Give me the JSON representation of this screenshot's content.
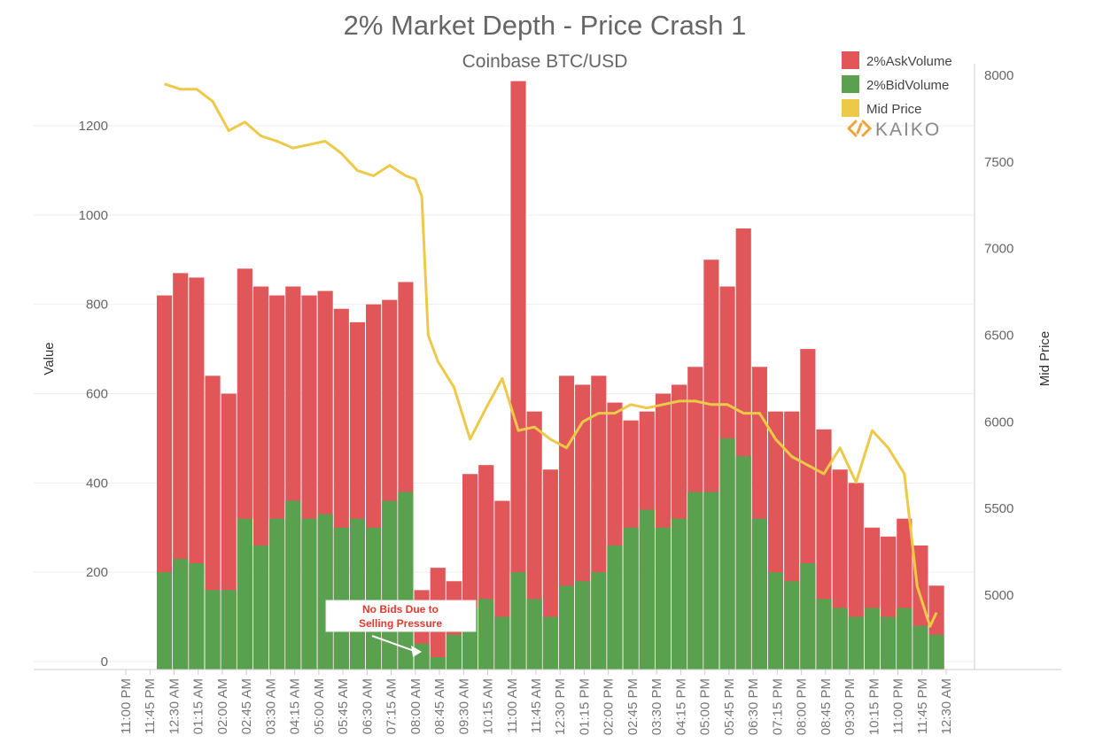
{
  "chart_data": {
    "type": "bar",
    "title": "2% Market Depth - Price Crash 1",
    "subtitle": "Coinbase BTC/USD",
    "ylabel": "Value",
    "y2label": "Mid Price",
    "ylim": [
      0,
      1300
    ],
    "y2lim": [
      4600,
      8000
    ],
    "yticks": [
      0,
      200,
      400,
      600,
      800,
      1000,
      1200
    ],
    "y2ticks": [
      5000,
      5500,
      6000,
      6500,
      7000,
      7500,
      8000
    ],
    "x_time_range_hours": [
      23.0,
      48.5
    ],
    "xticks": [
      "11:00 PM",
      "11:45 PM",
      "12:30 AM",
      "01:15 AM",
      "02:00 AM",
      "02:45 AM",
      "03:30 AM",
      "04:15 AM",
      "05:00 AM",
      "05:45 AM",
      "06:30 AM",
      "07:15 AM",
      "08:00 AM",
      "08:45 AM",
      "09:30 AM",
      "10:15 AM",
      "11:00 AM",
      "11:45 AM",
      "12:30 PM",
      "01:15 PM",
      "02:00 PM",
      "02:45 PM",
      "03:30 PM",
      "04:15 PM",
      "05:00 PM",
      "05:45 PM",
      "06:30 PM",
      "07:15 PM",
      "08:00 PM",
      "08:45 PM",
      "09:30 PM",
      "10:15 PM",
      "11:00 PM",
      "11:45 PM",
      "12:30 AM"
    ],
    "legend": [
      {
        "name": "2%AskVolume",
        "color": "#e15759"
      },
      {
        "name": "2%BidVolume",
        "color": "#59a14f"
      },
      {
        "name": "Mid Price",
        "color": "#edc948"
      }
    ],
    "series": [
      {
        "name": "2%AskVolume",
        "stacked_total": true,
        "x": [
          24.2,
          24.7,
          25.2,
          25.7,
          26.2,
          26.7,
          27.2,
          27.7,
          28.2,
          28.7,
          29.2,
          29.7,
          30.2,
          30.7,
          31.2,
          31.7,
          32.2,
          32.7,
          33.2,
          33.7,
          34.2,
          34.7,
          35.2,
          35.7,
          36.2,
          36.7,
          37.2,
          37.7,
          38.2,
          38.7,
          39.2,
          39.7,
          40.2,
          40.7,
          41.2,
          41.7,
          42.2,
          42.7,
          43.2,
          43.7,
          44.2,
          44.7,
          45.2,
          45.7,
          46.2,
          46.7,
          47.2,
          47.7,
          48.2
        ],
        "values": [
          820,
          870,
          860,
          640,
          600,
          880,
          840,
          820,
          840,
          820,
          830,
          790,
          760,
          800,
          810,
          850,
          160,
          210,
          180,
          420,
          440,
          360,
          1300,
          560,
          430,
          640,
          620,
          640,
          580,
          540,
          560,
          600,
          620,
          660,
          900,
          840,
          970,
          660,
          560,
          560,
          700,
          520,
          430,
          400,
          300,
          280,
          320,
          260,
          170
        ]
      },
      {
        "name": "2%BidVolume",
        "x": [
          24.2,
          24.7,
          25.2,
          25.7,
          26.2,
          26.7,
          27.2,
          27.7,
          28.2,
          28.7,
          29.2,
          29.7,
          30.2,
          30.7,
          31.2,
          31.7,
          32.2,
          32.7,
          33.2,
          33.7,
          34.2,
          34.7,
          35.2,
          35.7,
          36.2,
          36.7,
          37.2,
          37.7,
          38.2,
          38.7,
          39.2,
          39.7,
          40.2,
          40.7,
          41.2,
          41.7,
          42.2,
          42.7,
          43.2,
          43.7,
          44.2,
          44.7,
          45.2,
          45.7,
          46.2,
          46.7,
          47.2,
          47.7,
          48.2
        ],
        "values": [
          200,
          230,
          220,
          160,
          160,
          320,
          260,
          320,
          360,
          320,
          330,
          300,
          320,
          300,
          360,
          380,
          40,
          10,
          60,
          120,
          140,
          100,
          200,
          140,
          100,
          170,
          180,
          200,
          260,
          300,
          340,
          300,
          320,
          380,
          380,
          500,
          460,
          320,
          200,
          180,
          220,
          140,
          120,
          100,
          120,
          100,
          120,
          80,
          60
        ]
      },
      {
        "name": "Mid Price",
        "type": "line",
        "x": [
          24.2,
          24.7,
          25.2,
          25.7,
          26.2,
          26.7,
          27.2,
          27.7,
          28.2,
          28.7,
          29.2,
          29.7,
          30.2,
          30.7,
          31.2,
          31.7,
          32.0,
          32.2,
          32.4,
          32.7,
          33.2,
          33.7,
          34.2,
          34.7,
          35.2,
          35.7,
          36.2,
          36.7,
          37.2,
          37.7,
          38.2,
          38.7,
          39.2,
          39.7,
          40.2,
          40.7,
          41.2,
          41.7,
          42.2,
          42.7,
          43.2,
          43.7,
          44.2,
          44.7,
          45.2,
          45.7,
          46.2,
          46.7,
          47.2,
          47.6,
          48.0,
          48.2
        ],
        "values": [
          7950,
          7920,
          7920,
          7850,
          7680,
          7730,
          7650,
          7620,
          7580,
          7600,
          7620,
          7550,
          7450,
          7420,
          7480,
          7420,
          7400,
          7300,
          6500,
          6350,
          6200,
          5900,
          6080,
          6250,
          5950,
          5970,
          5900,
          5850,
          6000,
          6050,
          6050,
          6100,
          6080,
          6100,
          6120,
          6120,
          6100,
          6100,
          6050,
          6050,
          5900,
          5800,
          5750,
          5700,
          5850,
          5650,
          5950,
          5850,
          5700,
          5050,
          4820,
          4900
        ]
      }
    ],
    "annotation": {
      "text": "No Bids Due to Selling Pressure",
      "x": 32.2,
      "y": 10
    },
    "logo": "KAIKO"
  }
}
